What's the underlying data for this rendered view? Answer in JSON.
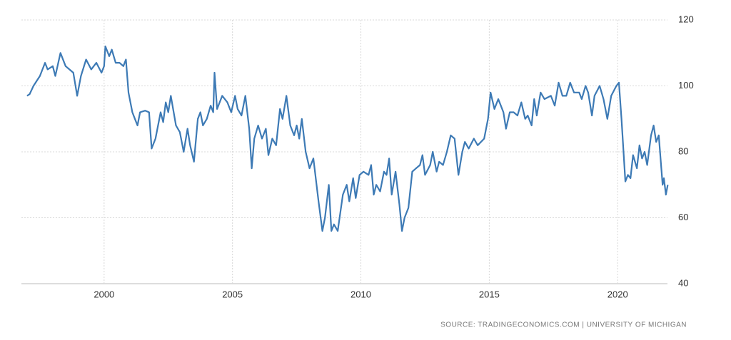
{
  "chart_data": {
    "type": "line",
    "source": "SOURCE: TRADINGECONOMICS.COM | UNIVERSITY OF MICHIGAN",
    "xlim": [
      1996.78,
      2021.94
    ],
    "ylim": [
      40,
      120
    ],
    "xticks": [
      2000,
      2005,
      2010,
      2015,
      2020
    ],
    "yticks": [
      40,
      60,
      80,
      100,
      120
    ],
    "grid": true,
    "series": [
      {
        "color": "#3d7ab5",
        "x": [
          1997.0,
          1997.1,
          1997.25,
          1997.5,
          1997.7,
          1997.8,
          1998.0,
          1998.1,
          1998.3,
          1998.5,
          1998.8,
          1998.95,
          1999.1,
          1999.3,
          1999.5,
          1999.7,
          1999.9,
          2000.0,
          2000.05,
          2000.2,
          2000.3,
          2000.45,
          2000.6,
          2000.75,
          2000.85,
          2000.95,
          2001.1,
          2001.2,
          2001.3,
          2001.4,
          2001.6,
          2001.75,
          2001.85,
          2002.0,
          2002.2,
          2002.3,
          2002.4,
          2002.5,
          2002.6,
          2002.8,
          2002.95,
          2003.1,
          2003.25,
          2003.35,
          2003.5,
          2003.65,
          2003.75,
          2003.85,
          2004.0,
          2004.15,
          2004.25,
          2004.3,
          2004.4,
          2004.6,
          2004.8,
          2004.95,
          2005.1,
          2005.2,
          2005.35,
          2005.5,
          2005.65,
          2005.75,
          2005.85,
          2006.0,
          2006.15,
          2006.3,
          2006.4,
          2006.55,
          2006.7,
          2006.85,
          2006.95,
          2007.1,
          2007.25,
          2007.4,
          2007.5,
          2007.6,
          2007.7,
          2007.85,
          2008.0,
          2008.15,
          2008.35,
          2008.5,
          2008.6,
          2008.75,
          2008.85,
          2008.95,
          2009.1,
          2009.3,
          2009.45,
          2009.55,
          2009.7,
          2009.8,
          2009.95,
          2010.1,
          2010.3,
          2010.4,
          2010.5,
          2010.6,
          2010.75,
          2010.9,
          2011.0,
          2011.1,
          2011.2,
          2011.35,
          2011.5,
          2011.6,
          2011.7,
          2011.85,
          2012.0,
          2012.15,
          2012.3,
          2012.4,
          2012.5,
          2012.7,
          2012.8,
          2012.95,
          2013.05,
          2013.2,
          2013.35,
          2013.5,
          2013.65,
          2013.8,
          2013.95,
          2014.05,
          2014.2,
          2014.4,
          2014.55,
          2014.8,
          2014.95,
          2015.05,
          2015.2,
          2015.35,
          2015.45,
          2015.55,
          2015.65,
          2015.8,
          2015.95,
          2016.1,
          2016.25,
          2016.4,
          2016.5,
          2016.65,
          2016.75,
          2016.85,
          2017.0,
          2017.15,
          2017.4,
          2017.55,
          2017.7,
          2017.85,
          2018.0,
          2018.15,
          2018.3,
          2018.5,
          2018.6,
          2018.75,
          2018.85,
          2019.0,
          2019.1,
          2019.3,
          2019.45,
          2019.6,
          2019.75,
          2019.95,
          2020.05,
          2020.15,
          2020.3,
          2020.4,
          2020.5,
          2020.6,
          2020.75,
          2020.85,
          2020.95,
          2021.05,
          2021.15,
          2021.3,
          2021.4,
          2021.5,
          2021.6,
          2021.7,
          2021.75,
          2021.8,
          2021.88,
          2021.95
        ],
        "values": [
          97,
          97.5,
          100,
          103,
          107,
          105,
          106,
          103,
          110,
          106,
          104,
          97,
          103,
          108,
          105,
          107,
          104,
          106,
          112,
          109,
          111,
          107,
          107,
          106,
          108,
          98,
          92,
          90,
          88,
          92,
          92.5,
          92,
          81,
          84,
          92,
          89,
          95,
          92,
          97,
          88,
          86,
          80,
          87,
          82,
          77,
          90,
          92,
          88,
          90,
          94,
          92,
          104,
          93,
          97,
          95,
          92,
          97,
          93,
          91,
          97,
          87,
          75,
          84,
          88,
          84,
          87,
          79,
          84,
          82,
          93,
          90,
          97,
          88,
          85,
          88,
          84,
          90,
          80,
          75,
          78,
          65,
          56,
          60,
          70,
          56,
          58,
          56,
          67,
          70,
          65,
          72,
          66,
          73,
          74,
          73,
          76,
          67,
          70,
          68,
          74,
          73,
          78,
          67,
          74,
          64,
          56,
          60,
          63,
          74,
          75,
          76,
          79,
          73,
          76,
          80,
          74,
          77,
          76,
          80,
          85,
          84,
          73,
          80,
          83,
          81,
          84,
          82,
          84,
          90,
          98,
          93,
          96,
          94,
          92,
          87,
          92,
          92,
          91,
          95,
          90,
          91,
          88,
          96,
          91,
          98,
          96,
          97,
          94,
          101,
          97,
          97,
          101,
          98,
          98,
          96,
          100,
          98,
          91,
          97,
          100,
          96,
          90,
          97,
          100,
          101,
          90,
          71,
          73,
          72,
          79,
          75,
          82,
          78,
          80,
          76,
          85,
          88,
          83,
          85,
          75,
          70,
          72,
          67,
          70
        ]
      }
    ]
  }
}
